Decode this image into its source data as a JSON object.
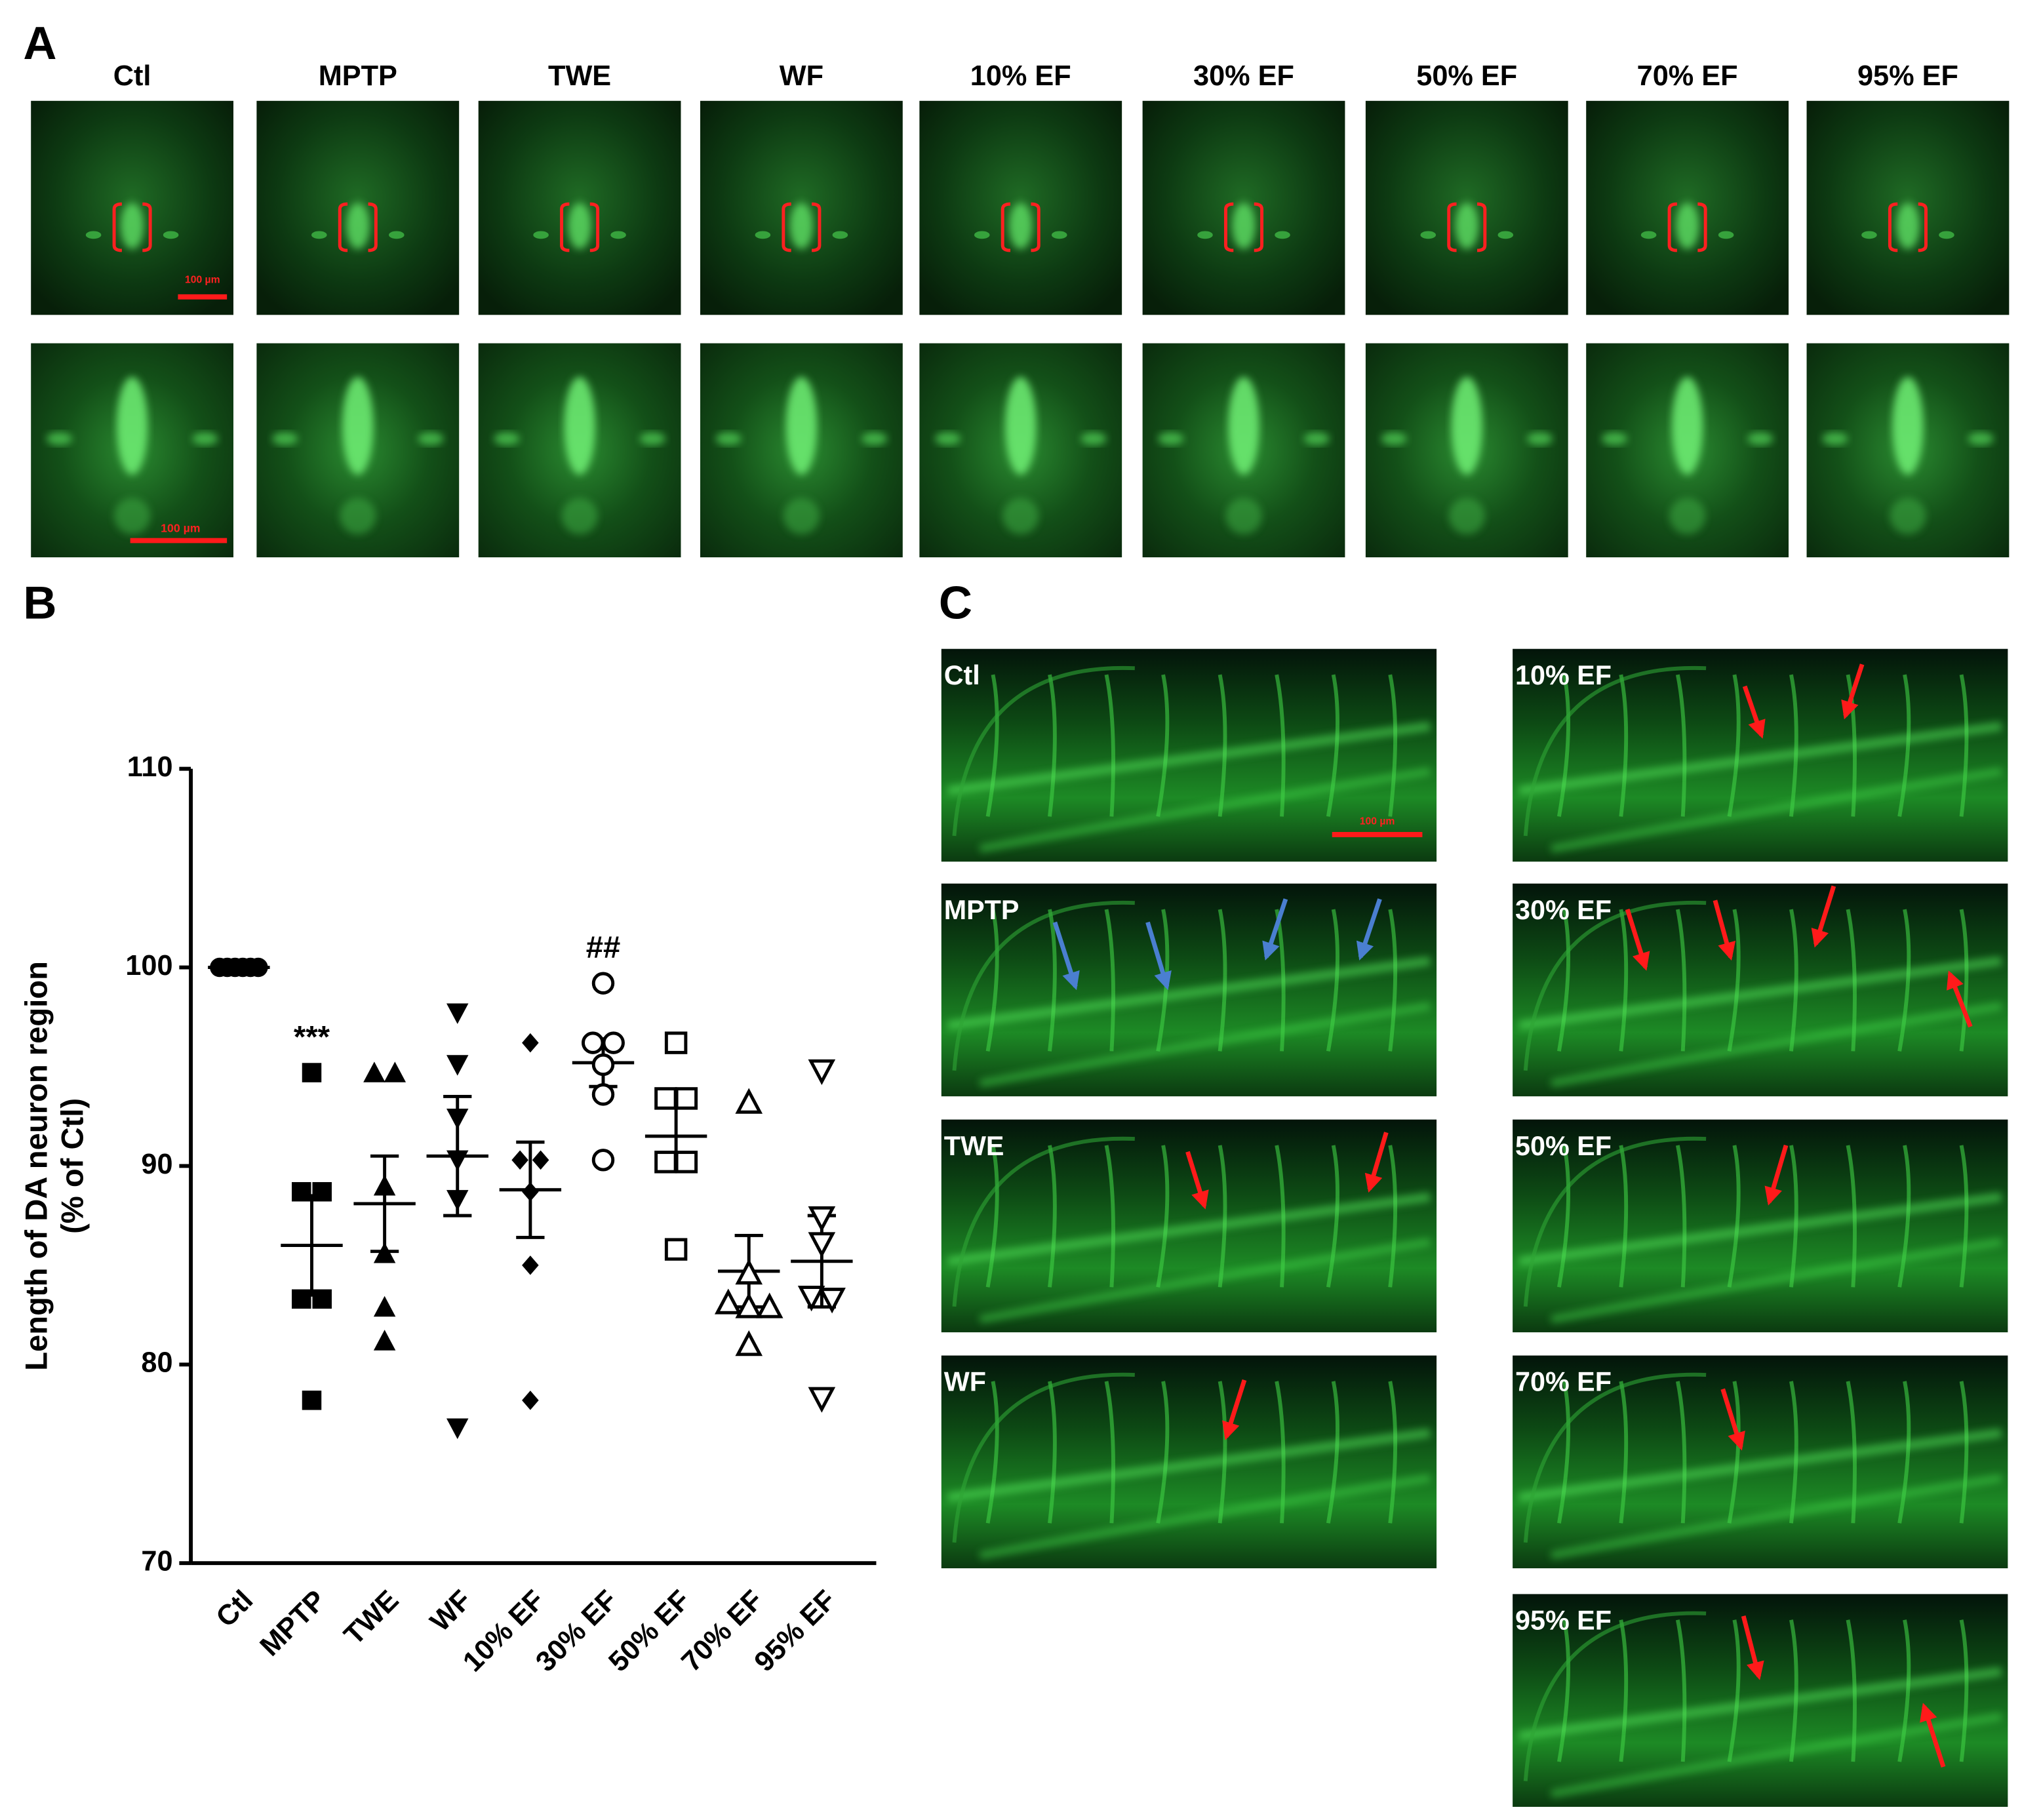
{
  "panel_a": {
    "label": "A",
    "columns": [
      "Ctl",
      "MPTP",
      "TWE",
      "WF",
      "10% EF",
      "30% EF",
      "50% EF",
      "70% EF",
      "95% EF"
    ],
    "scale_bar_top": "100 µm",
    "scale_bar_bottom": "100 µm"
  },
  "chart_data": {
    "type": "scatter",
    "panel_label": "B",
    "y_label": [
      "Length of DA neuron region",
      "(% of Ctl)"
    ],
    "categories": [
      "Ctl",
      "MPTP",
      "TWE",
      "WF",
      "10% EF",
      "30% EF",
      "50% EF",
      "70% EF",
      "95% EF"
    ],
    "points": [
      [
        100,
        100,
        100,
        100,
        100,
        100
      ],
      [
        94.7,
        88.7,
        88.7,
        83.3,
        83.3,
        78.2
      ],
      [
        94.7,
        94.7,
        89,
        85.6,
        82.9,
        81.2
      ],
      [
        97.7,
        95.1,
        92.4,
        90.3,
        88.3,
        76.8
      ],
      [
        96.2,
        90.3,
        90.3,
        88.7,
        85,
        78.2
      ],
      [
        99.2,
        96.2,
        96.2,
        95.1,
        93.6,
        90.3
      ],
      [
        96.2,
        93.4,
        93.4,
        90.2,
        90.2,
        85.8
      ],
      [
        93.2,
        84.6,
        83.1,
        82.9,
        82.9,
        81
      ],
      [
        94.8,
        87.4,
        86.1,
        83.4,
        83.3,
        78.3
      ]
    ],
    "means": [
      100,
      86,
      88.1,
      90.5,
      88.8,
      95.2,
      91.5,
      84.7,
      85.2
    ],
    "sems": [
      0,
      2.5,
      2.4,
      3,
      2.4,
      1.2,
      1.6,
      1.8,
      2.3
    ],
    "markers": [
      "circle",
      "square",
      "triangle-up",
      "triangle-down",
      "diamond",
      "circle-open",
      "square-open",
      "triangle-up-open",
      "triangle-down-open"
    ],
    "color": "#000000",
    "annotations": [
      {
        "text": "***",
        "category": "MPTP"
      },
      {
        "text": "##",
        "category": "30% EF"
      }
    ],
    "ylim": [
      70,
      110
    ],
    "yticks": [
      70,
      80,
      90,
      100,
      110
    ]
  },
  "panel_c": {
    "label": "C",
    "left": [
      "Ctl",
      "MPTP",
      "TWE",
      "WF"
    ],
    "right": [
      "10% EF",
      "30% EF",
      "50% EF",
      "70% EF",
      "95% EF"
    ],
    "scale_bar": "100 µm"
  }
}
